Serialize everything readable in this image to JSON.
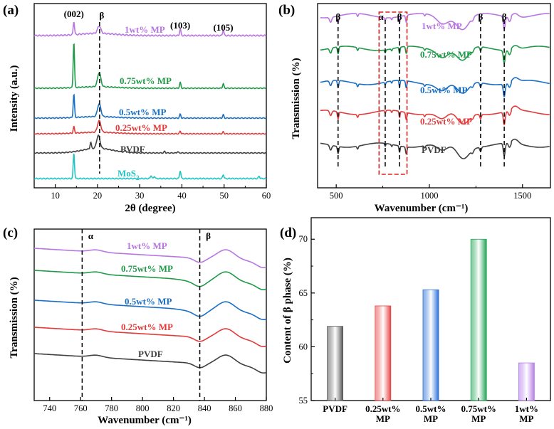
{
  "chart_data": [
    {
      "panel": "(a)",
      "type": "line",
      "xlabel": "2θ (degree)",
      "ylabel": "Intensity (a.u.)",
      "xlim": [
        5,
        60
      ],
      "xticks": [
        10,
        20,
        30,
        40,
        50,
        60
      ],
      "grid": false,
      "peak_labels": [
        "(002)",
        "β",
        "(103)",
        "(105)"
      ],
      "peaks_2theta": [
        14.4,
        20.5,
        39.6,
        49.8
      ],
      "dashed_line_x": [
        20.5
      ],
      "series": [
        {
          "name": "1wt% MP",
          "color": "#b776e0",
          "peaks": [
            [
              14.4,
              0.7
            ],
            [
              20.4,
              0.4
            ],
            [
              39.6,
              0.35
            ],
            [
              49.8,
              0.3
            ]
          ]
        },
        {
          "name": "0.75wt% MP",
          "color": "#1f9a48",
          "peaks": [
            [
              14.4,
              3.5
            ],
            [
              20.4,
              1.1
            ],
            [
              39.6,
              0.45
            ],
            [
              49.8,
              0.35
            ]
          ]
        },
        {
          "name": "0.5wt% MP",
          "color": "#1a6fc4",
          "peaks": [
            [
              14.4,
              1.8
            ],
            [
              20.4,
              1.0
            ],
            [
              39.6,
              0.3
            ],
            [
              49.8,
              0.25
            ]
          ]
        },
        {
          "name": "0.25wt% MP",
          "color": "#e23b3b",
          "peaks": [
            [
              14.4,
              0.5
            ],
            [
              20.4,
              0.9
            ],
            [
              39.6,
              0.2
            ],
            [
              49.8,
              0.15
            ]
          ]
        },
        {
          "name": "PVDF",
          "color": "#404040",
          "peaks": [
            [
              18.4,
              0.5
            ],
            [
              20.2,
              1.0
            ],
            [
              26.6,
              0.15
            ],
            [
              35.9,
              0.12
            ],
            [
              39.0,
              0.1
            ]
          ]
        },
        {
          "name": "MoS2",
          "color": "#22c3c3",
          "peaks": [
            [
              14.4,
              1.6
            ],
            [
              32.7,
              0.2
            ],
            [
              33.5,
              0.15
            ],
            [
              39.6,
              0.5
            ],
            [
              49.8,
              0.25
            ],
            [
              58.3,
              0.15
            ]
          ]
        }
      ],
      "series_label_subscripts": {
        "MoS2": "2"
      }
    },
    {
      "panel": "(b)",
      "type": "line",
      "xlabel": "Wavenumber (cm⁻¹)",
      "ylabel": "Transmission (%)",
      "xlim": [
        400,
        1650
      ],
      "xticks": [
        500,
        1000,
        1500
      ],
      "tick_labels": [
        "500",
        "1000",
        "1500"
      ],
      "grid": false,
      "band_labels": [
        "β",
        "α",
        "β",
        "β",
        "β"
      ],
      "dashed_line_x": [
        510,
        763,
        840,
        1275,
        1402
      ],
      "highlight_region": [
        730,
        880
      ],
      "series": [
        {
          "name": "1wt% MP",
          "color": "#b776e0"
        },
        {
          "name": "0.75wt% MP",
          "color": "#1f9a48"
        },
        {
          "name": "0.5wt% MP",
          "color": "#1a6fc4"
        },
        {
          "name": "0.25wt% MP",
          "color": "#e23b3b"
        },
        {
          "name": "PVDF",
          "color": "#404040"
        }
      ]
    },
    {
      "panel": "(c)",
      "type": "line",
      "xlabel": "Wavenumber (cm⁻¹)",
      "ylabel": "Transmission (%)",
      "xlim": [
        730,
        880
      ],
      "xticks": [
        740,
        760,
        780,
        800,
        820,
        840,
        860,
        880
      ],
      "grid": false,
      "band_labels": [
        "α",
        "β"
      ],
      "dashed_line_x": [
        761,
        837
      ],
      "series": [
        {
          "name": "1wt% MP",
          "color": "#b776e0"
        },
        {
          "name": "0.75wt% MP",
          "color": "#1f9a48"
        },
        {
          "name": "0.5wt% MP",
          "color": "#1a6fc4"
        },
        {
          "name": "0.25wt% MP",
          "color": "#e23b3b"
        },
        {
          "name": "PVDF",
          "color": "#404040"
        }
      ]
    },
    {
      "panel": "(d)",
      "type": "bar",
      "ylabel": "Content of β phase (%)",
      "ylim": [
        55,
        72
      ],
      "yticks": [
        55,
        60,
        65,
        70
      ],
      "grid": false,
      "categories": [
        "PVDF",
        "0.25wt% MP",
        "0.5wt% MP",
        "0.75wt% MP",
        "1wt% MP"
      ],
      "category_lines": [
        [
          "PVDF"
        ],
        [
          "0.25wt%",
          "MP"
        ],
        [
          "0.5wt%",
          "MP"
        ],
        [
          "0.75wt%",
          "MP"
        ],
        [
          "1wt%",
          "MP"
        ]
      ],
      "values": [
        61.9,
        63.8,
        65.3,
        70.0,
        58.5
      ],
      "colors": [
        "#555555",
        "#e84545",
        "#2d6fd6",
        "#1fa253",
        "#b57de6"
      ]
    }
  ]
}
